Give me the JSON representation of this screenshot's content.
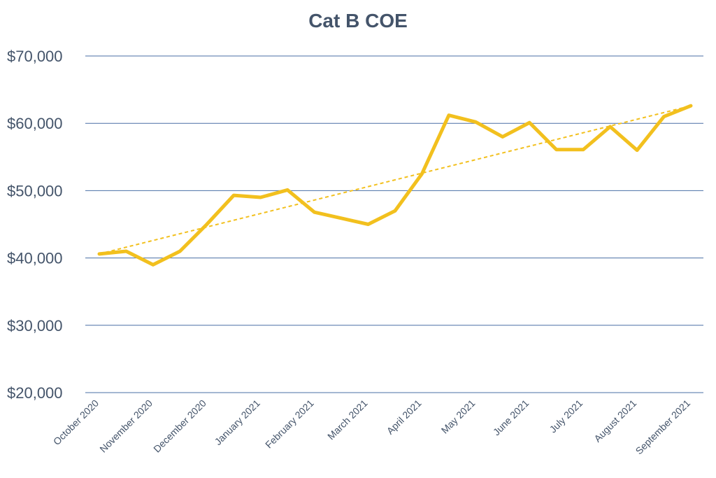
{
  "chart_data": {
    "type": "line",
    "title": "Cat B COE",
    "xlabel": "",
    "ylabel": "",
    "ylim": [
      20000,
      70000
    ],
    "yticks": [
      20000,
      30000,
      40000,
      50000,
      60000,
      70000
    ],
    "ytick_labels": [
      "$20,000",
      "$30,000",
      "$40,000",
      "$50,000",
      "$60,000",
      "$70,000"
    ],
    "x_tick_labels": [
      "October 2020",
      "November 2020",
      "December 2020",
      "January 2021",
      "February 2021",
      "March 2021",
      "April 2021",
      "May 2021",
      "June 2021",
      "July 2021",
      "August 2021",
      "September 2021"
    ],
    "grid": true,
    "legend": "none",
    "series": [
      {
        "values": [
          40600,
          41000,
          39000,
          41000,
          45000,
          49300,
          49000,
          50100,
          46800,
          45900,
          45000,
          47000,
          52500,
          61200,
          60200,
          58000,
          60100,
          56100,
          56100,
          59500,
          56000,
          61000,
          62600
        ],
        "color": "#f2c01e",
        "style": "solid"
      },
      {
        "type": "trendline",
        "values": [
          40600,
          62600
        ],
        "color": "#f2c01e",
        "style": "dashed"
      }
    ],
    "gridline_color": "#4a6fa5"
  }
}
